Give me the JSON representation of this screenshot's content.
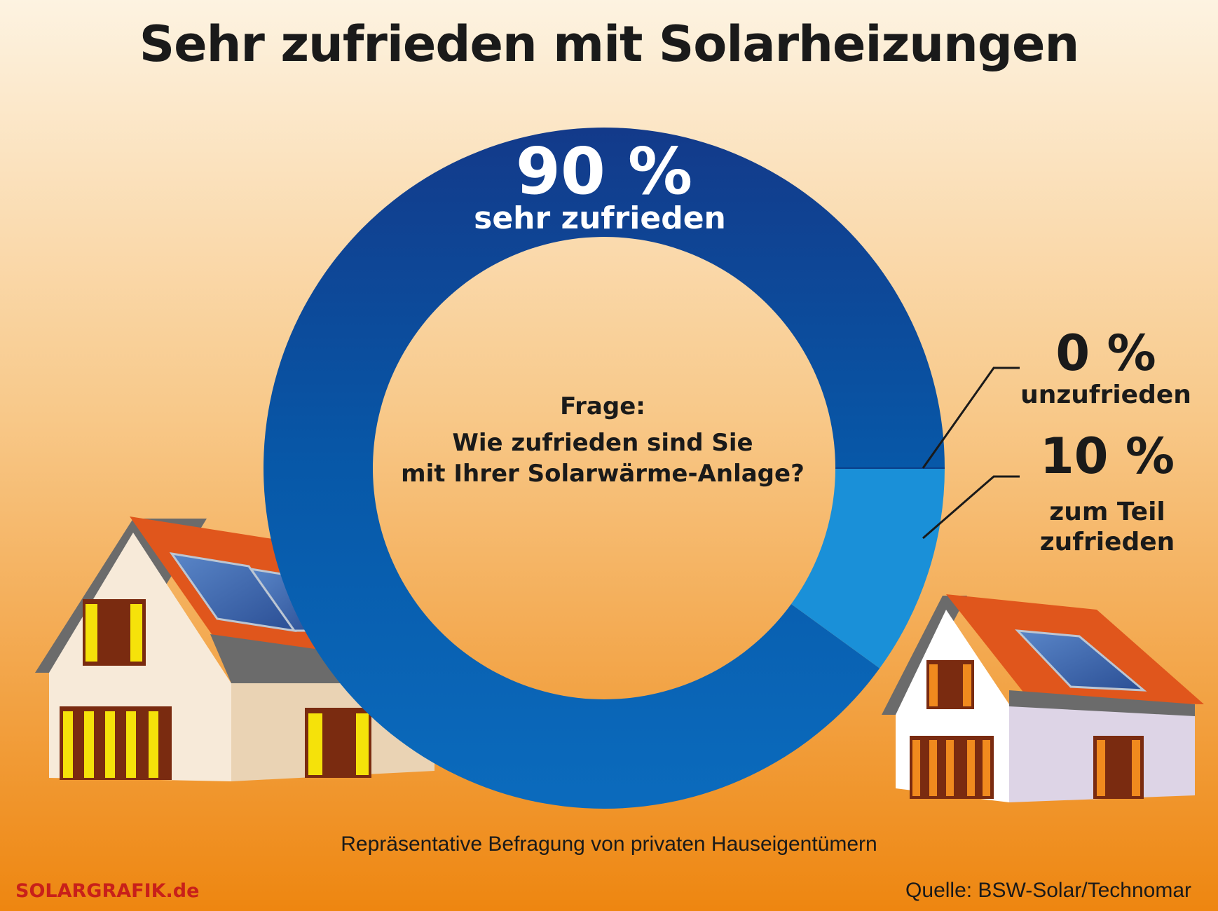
{
  "title": "Sehr zufrieden mit Solarheizungen",
  "question": {
    "label": "Frage:",
    "line1": "Wie zufrieden sind Sie",
    "line2": "mit Ihrer Solarwärme-Anlage?"
  },
  "footnote": "Repräsentative Befragung von privaten Hauseigentümern",
  "brand": "SOLARGRAFIK.de",
  "source": "Quelle: BSW-Solar/Technomar",
  "colors": {
    "background_top": "#fdf1dc",
    "background_bottom": "#ef8a12",
    "sehr_zufrieden": "#0b4a9e",
    "zum_teil": "#1a90d8",
    "roof": "#e05a1e",
    "window_glow": "#f5e20a"
  },
  "chart_data": {
    "type": "pie",
    "donut": true,
    "slices": [
      {
        "value": 90,
        "value_label": "90 %",
        "label": "sehr zufrieden",
        "color": "#0b4a9e"
      },
      {
        "value": 0,
        "value_label": "0 %",
        "label": "unzufrieden",
        "color": "#0b4a9e"
      },
      {
        "value": 10,
        "value_label": "10 %",
        "label": "zum Teil zufrieden",
        "label_lines": [
          "zum Teil",
          "zufrieden"
        ],
        "color": "#1a90d8"
      }
    ]
  }
}
